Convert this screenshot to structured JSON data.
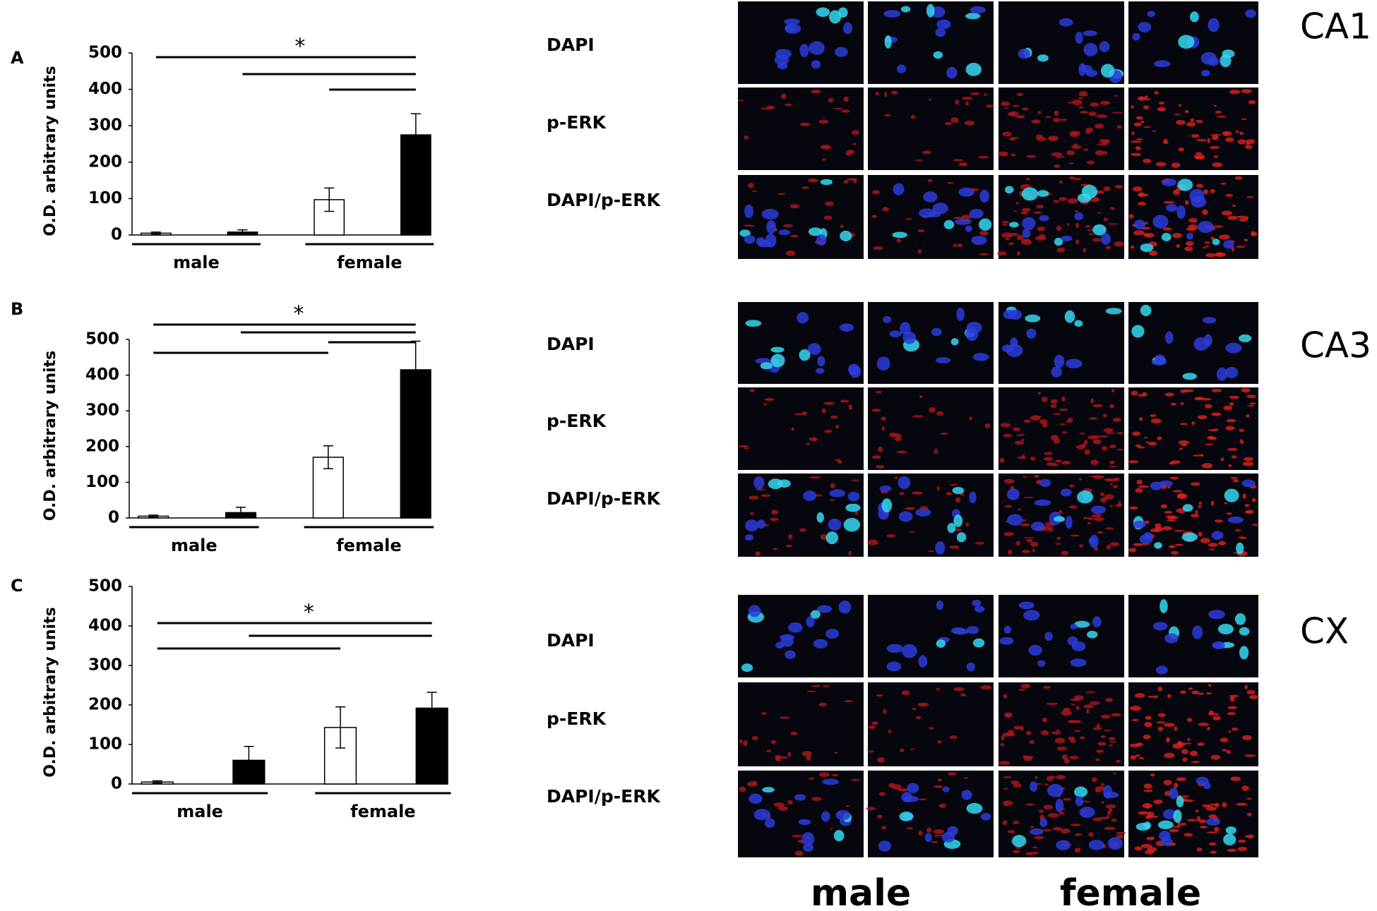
{
  "chart_data": [
    {
      "type": "bar",
      "label": "A",
      "ylabel": "O.D. arbitrary units",
      "significance": "*",
      "categories": [
        "male",
        "female"
      ],
      "series": [
        {
          "color": "#ffffff",
          "values": [
            5,
            97
          ],
          "errors": [
            3,
            32
          ]
        },
        {
          "color": "#000000",
          "values": [
            8,
            275
          ],
          "errors": [
            6,
            58
          ]
        }
      ],
      "ylim": [
        0,
        500
      ],
      "yticks": [
        0,
        100,
        200,
        300,
        400,
        500
      ]
    },
    {
      "type": "bar",
      "label": "B",
      "ylabel": "O.D. arbitrary units",
      "significance": "*",
      "categories": [
        "male",
        "female"
      ],
      "series": [
        {
          "color": "#ffffff",
          "values": [
            5,
            170
          ],
          "errors": [
            3,
            32
          ]
        },
        {
          "color": "#000000",
          "values": [
            15,
            415
          ],
          "errors": [
            15,
            80
          ]
        }
      ],
      "ylim": [
        0,
        500
      ],
      "yticks": [
        0,
        100,
        200,
        300,
        400,
        500
      ]
    },
    {
      "type": "bar",
      "label": "C",
      "ylabel": "O.D. arbitrary units",
      "significance": "*",
      "categories": [
        "male",
        "female"
      ],
      "series": [
        {
          "color": "#ffffff",
          "values": [
            5,
            143
          ],
          "errors": [
            3,
            52
          ]
        },
        {
          "color": "#000000",
          "values": [
            60,
            192
          ],
          "errors": [
            35,
            40
          ]
        }
      ],
      "ylim": [
        0,
        500
      ],
      "yticks": [
        0,
        100,
        200,
        300,
        400,
        500
      ]
    }
  ],
  "images": [
    {
      "region": "CA1",
      "rows": [
        "DAPI",
        "p-ERK",
        "DAPI/p-ERK"
      ]
    },
    {
      "region": "CA3",
      "rows": [
        "DAPI",
        "p-ERK",
        "DAPI/p-ERK"
      ]
    },
    {
      "region": "CX",
      "rows": [
        "DAPI",
        "p-ERK",
        "DAPI/p-ERK"
      ]
    }
  ],
  "columns": [
    "male",
    "female"
  ]
}
